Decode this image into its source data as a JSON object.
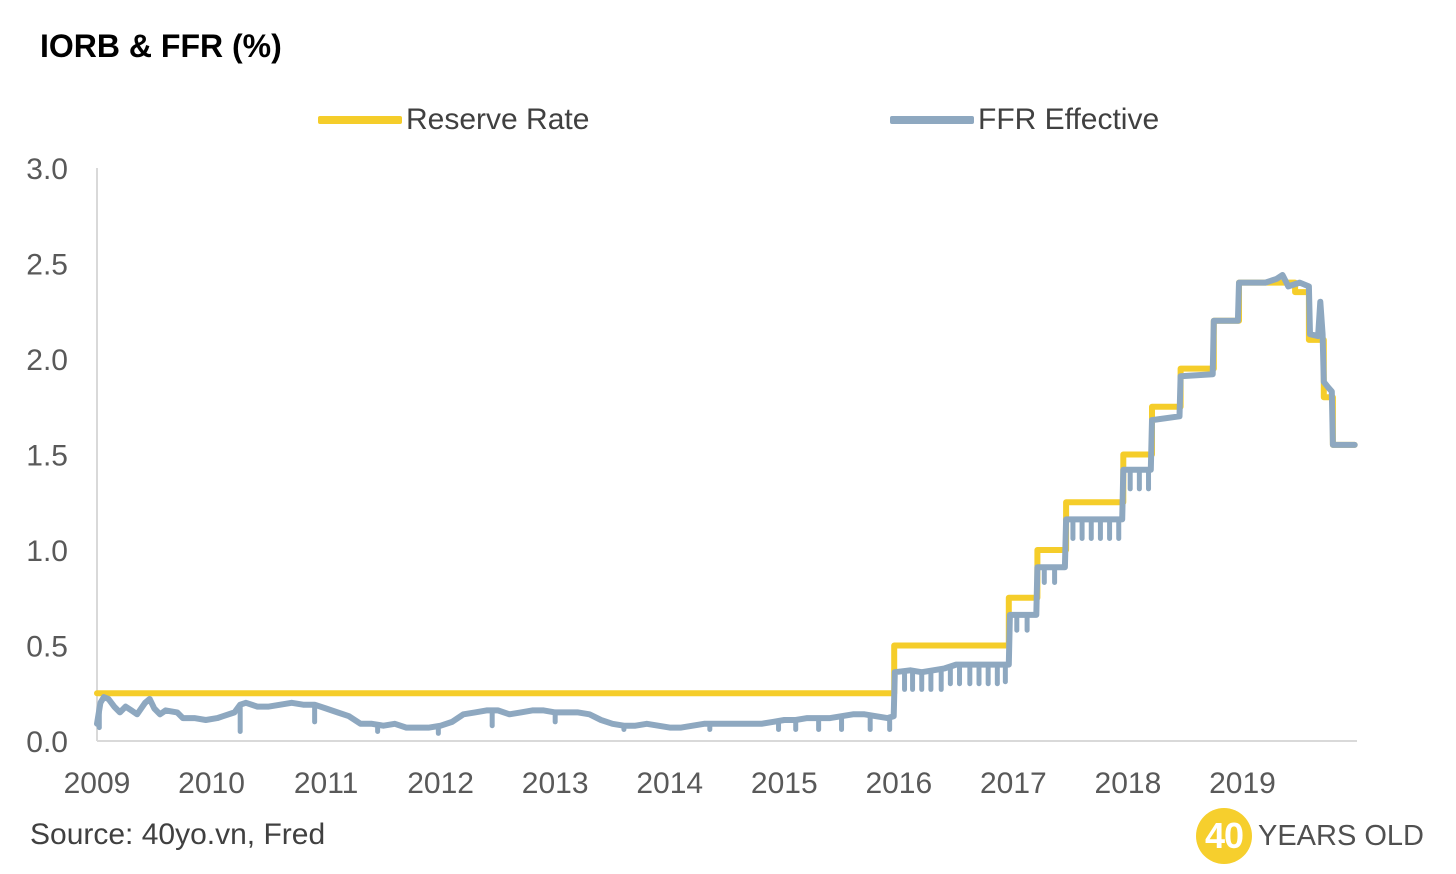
{
  "chart_data": {
    "type": "line",
    "title": "IORB & FFR (%)",
    "xlabel": "",
    "ylabel": "",
    "xlim": [
      2009,
      2020
    ],
    "ylim": [
      0,
      3.0
    ],
    "xticks": [
      "2009",
      "2010",
      "2011",
      "2012",
      "2013",
      "2014",
      "2015",
      "2016",
      "2017",
      "2018",
      "2019"
    ],
    "yticks": [
      "0.0",
      "0.5",
      "1.0",
      "1.5",
      "2.0",
      "2.5",
      "3.0"
    ],
    "grid": false,
    "legend_position": "top",
    "series": [
      {
        "name": "Reserve Rate",
        "color": "#f5cd2a",
        "step": true,
        "points": [
          [
            2009.0,
            0.25
          ],
          [
            2015.96,
            0.25
          ],
          [
            2015.96,
            0.5
          ],
          [
            2016.96,
            0.5
          ],
          [
            2016.96,
            0.75
          ],
          [
            2017.21,
            0.75
          ],
          [
            2017.21,
            1.0
          ],
          [
            2017.46,
            1.0
          ],
          [
            2017.46,
            1.25
          ],
          [
            2017.96,
            1.25
          ],
          [
            2017.96,
            1.5
          ],
          [
            2018.21,
            1.5
          ],
          [
            2018.21,
            1.75
          ],
          [
            2018.46,
            1.75
          ],
          [
            2018.46,
            1.95
          ],
          [
            2018.75,
            1.95
          ],
          [
            2018.75,
            2.2
          ],
          [
            2018.97,
            2.2
          ],
          [
            2018.97,
            2.4
          ],
          [
            2019.46,
            2.4
          ],
          [
            2019.46,
            2.35
          ],
          [
            2019.58,
            2.35
          ],
          [
            2019.58,
            2.1
          ],
          [
            2019.71,
            2.1
          ],
          [
            2019.71,
            1.8
          ],
          [
            2019.79,
            1.8
          ],
          [
            2019.79,
            1.55
          ],
          [
            2019.98,
            1.55
          ]
        ]
      },
      {
        "name": "FFR Effective",
        "color": "#8ea8c0",
        "points": [
          [
            2009.0,
            0.09
          ],
          [
            2009.03,
            0.2
          ],
          [
            2009.06,
            0.23
          ],
          [
            2009.1,
            0.22
          ],
          [
            2009.15,
            0.18
          ],
          [
            2009.2,
            0.15
          ],
          [
            2009.25,
            0.18
          ],
          [
            2009.3,
            0.16
          ],
          [
            2009.35,
            0.14
          ],
          [
            2009.42,
            0.2
          ],
          [
            2009.46,
            0.22
          ],
          [
            2009.5,
            0.17
          ],
          [
            2009.55,
            0.14
          ],
          [
            2009.6,
            0.16
          ],
          [
            2009.7,
            0.15
          ],
          [
            2009.75,
            0.12
          ],
          [
            2009.85,
            0.12
          ],
          [
            2009.95,
            0.11
          ],
          [
            2010.05,
            0.12
          ],
          [
            2010.1,
            0.13
          ],
          [
            2010.2,
            0.15
          ],
          [
            2010.25,
            0.19
          ],
          [
            2010.3,
            0.2
          ],
          [
            2010.4,
            0.18
          ],
          [
            2010.5,
            0.18
          ],
          [
            2010.6,
            0.19
          ],
          [
            2010.7,
            0.2
          ],
          [
            2010.8,
            0.19
          ],
          [
            2010.9,
            0.19
          ],
          [
            2011.0,
            0.17
          ],
          [
            2011.1,
            0.15
          ],
          [
            2011.2,
            0.13
          ],
          [
            2011.3,
            0.09
          ],
          [
            2011.4,
            0.09
          ],
          [
            2011.5,
            0.08
          ],
          [
            2011.6,
            0.09
          ],
          [
            2011.7,
            0.07
          ],
          [
            2011.8,
            0.07
          ],
          [
            2011.9,
            0.07
          ],
          [
            2012.0,
            0.08
          ],
          [
            2012.1,
            0.1
          ],
          [
            2012.2,
            0.14
          ],
          [
            2012.3,
            0.15
          ],
          [
            2012.4,
            0.16
          ],
          [
            2012.5,
            0.16
          ],
          [
            2012.6,
            0.14
          ],
          [
            2012.7,
            0.15
          ],
          [
            2012.8,
            0.16
          ],
          [
            2012.9,
            0.16
          ],
          [
            2013.0,
            0.15
          ],
          [
            2013.1,
            0.15
          ],
          [
            2013.2,
            0.15
          ],
          [
            2013.3,
            0.14
          ],
          [
            2013.4,
            0.11
          ],
          [
            2013.5,
            0.09
          ],
          [
            2013.6,
            0.08
          ],
          [
            2013.7,
            0.08
          ],
          [
            2013.8,
            0.09
          ],
          [
            2013.9,
            0.08
          ],
          [
            2014.0,
            0.07
          ],
          [
            2014.1,
            0.07
          ],
          [
            2014.2,
            0.08
          ],
          [
            2014.3,
            0.09
          ],
          [
            2014.4,
            0.09
          ],
          [
            2014.5,
            0.09
          ],
          [
            2014.6,
            0.09
          ],
          [
            2014.7,
            0.09
          ],
          [
            2014.8,
            0.09
          ],
          [
            2014.9,
            0.1
          ],
          [
            2015.0,
            0.11
          ],
          [
            2015.1,
            0.11
          ],
          [
            2015.2,
            0.12
          ],
          [
            2015.3,
            0.12
          ],
          [
            2015.4,
            0.12
          ],
          [
            2015.5,
            0.13
          ],
          [
            2015.6,
            0.14
          ],
          [
            2015.7,
            0.14
          ],
          [
            2015.8,
            0.13
          ],
          [
            2015.9,
            0.12
          ],
          [
            2015.955,
            0.13
          ],
          [
            2015.965,
            0.36
          ],
          [
            2016.1,
            0.37
          ],
          [
            2016.2,
            0.36
          ],
          [
            2016.3,
            0.37
          ],
          [
            2016.4,
            0.38
          ],
          [
            2016.5,
            0.4
          ],
          [
            2016.6,
            0.4
          ],
          [
            2016.7,
            0.4
          ],
          [
            2016.8,
            0.4
          ],
          [
            2016.96,
            0.4
          ],
          [
            2016.97,
            0.66
          ],
          [
            2017.2,
            0.66
          ],
          [
            2017.21,
            0.91
          ],
          [
            2017.45,
            0.91
          ],
          [
            2017.46,
            1.16
          ],
          [
            2017.95,
            1.16
          ],
          [
            2017.96,
            1.42
          ],
          [
            2018.2,
            1.42
          ],
          [
            2018.21,
            1.68
          ],
          [
            2018.45,
            1.7
          ],
          [
            2018.46,
            1.91
          ],
          [
            2018.74,
            1.92
          ],
          [
            2018.75,
            2.2
          ],
          [
            2018.96,
            2.2
          ],
          [
            2018.97,
            2.4
          ],
          [
            2019.2,
            2.4
          ],
          [
            2019.3,
            2.42
          ],
          [
            2019.35,
            2.44
          ],
          [
            2019.4,
            2.38
          ],
          [
            2019.5,
            2.4
          ],
          [
            2019.58,
            2.38
          ],
          [
            2019.59,
            2.13
          ],
          [
            2019.66,
            2.12
          ],
          [
            2019.68,
            2.3
          ],
          [
            2019.7,
            2.13
          ],
          [
            2019.71,
            1.88
          ],
          [
            2019.75,
            1.85
          ],
          [
            2019.78,
            1.83
          ],
          [
            2019.79,
            1.55
          ],
          [
            2019.9,
            1.55
          ],
          [
            2019.98,
            1.55
          ]
        ],
        "downward_spikes": [
          [
            2009.02,
            0.07
          ],
          [
            2010.25,
            0.05
          ],
          [
            2010.9,
            0.1
          ],
          [
            2011.45,
            0.05
          ],
          [
            2011.98,
            0.04
          ],
          [
            2012.45,
            0.08
          ],
          [
            2013.0,
            0.1
          ],
          [
            2013.6,
            0.06
          ],
          [
            2014.35,
            0.06
          ],
          [
            2014.95,
            0.06
          ],
          [
            2015.1,
            0.06
          ],
          [
            2015.3,
            0.06
          ],
          [
            2015.5,
            0.06
          ],
          [
            2015.75,
            0.06
          ],
          [
            2015.92,
            0.06
          ],
          [
            2016.05,
            0.27
          ],
          [
            2016.12,
            0.27
          ],
          [
            2016.2,
            0.27
          ],
          [
            2016.28,
            0.27
          ],
          [
            2016.37,
            0.27
          ],
          [
            2016.45,
            0.3
          ],
          [
            2016.53,
            0.3
          ],
          [
            2016.62,
            0.3
          ],
          [
            2016.7,
            0.3
          ],
          [
            2016.78,
            0.3
          ],
          [
            2016.86,
            0.3
          ],
          [
            2016.93,
            0.31
          ],
          [
            2017.03,
            0.58
          ],
          [
            2017.12,
            0.58
          ],
          [
            2017.27,
            0.83
          ],
          [
            2017.36,
            0.83
          ],
          [
            2017.52,
            1.06
          ],
          [
            2017.6,
            1.06
          ],
          [
            2017.68,
            1.06
          ],
          [
            2017.76,
            1.06
          ],
          [
            2017.84,
            1.06
          ],
          [
            2017.92,
            1.06
          ],
          [
            2018.02,
            1.32
          ],
          [
            2018.1,
            1.32
          ],
          [
            2018.18,
            1.32
          ]
        ]
      }
    ]
  },
  "legend": {
    "reserve_label": "Reserve Rate",
    "ffr_label": "FFR Effective",
    "reserve_color": "#f5cd2a",
    "ffr_color": "#8ea8c0"
  },
  "footer": {
    "source": "Source: 40yo.vn, Fred",
    "brand_number": "40",
    "brand_text": "YEARS OLD"
  },
  "colors": {
    "axis": "#d9d9d9",
    "tick_text": "#595959",
    "brand": "#f6cf2d"
  }
}
